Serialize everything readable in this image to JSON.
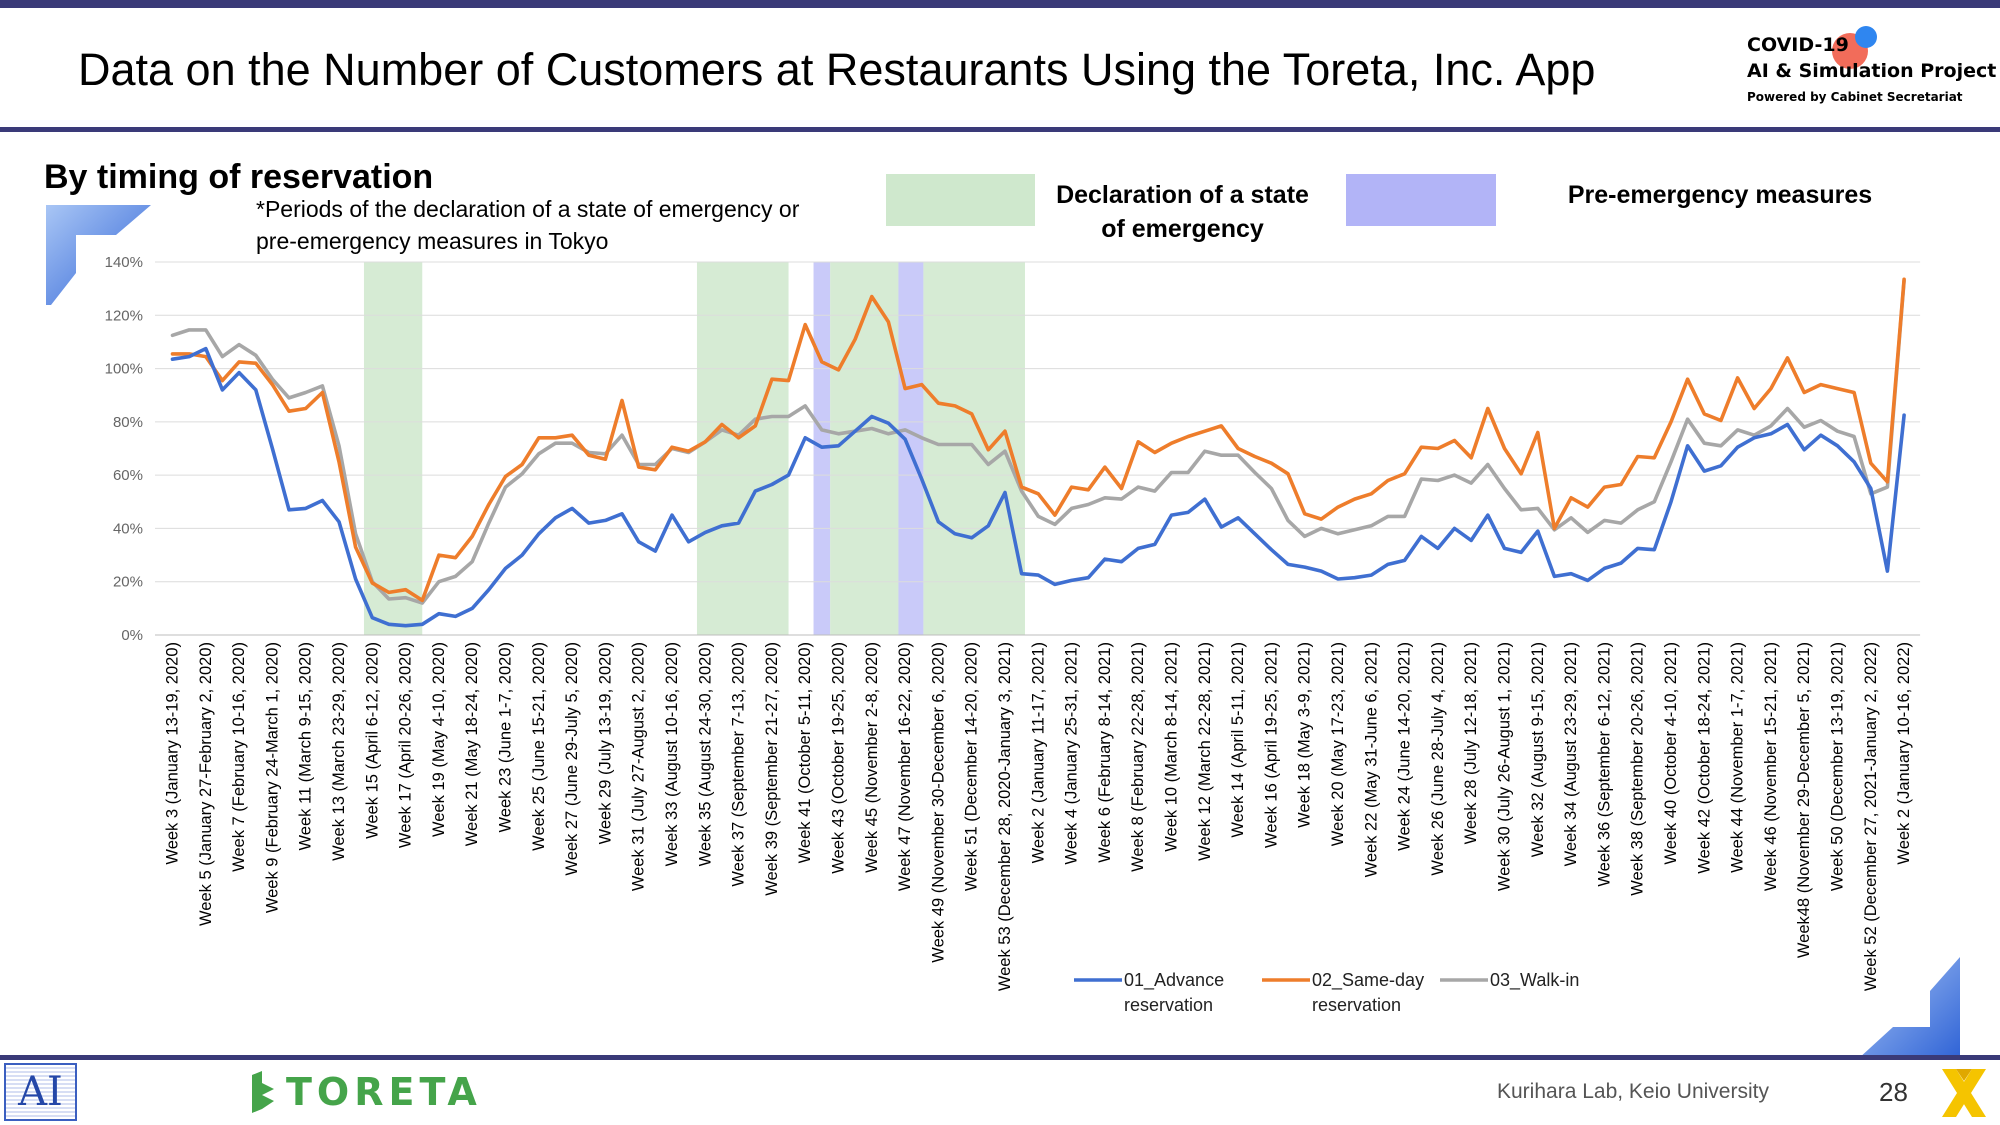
{
  "header": {
    "title": "Data on the Number of Customers at Restaurants Using the Toreta, Inc. App",
    "brand_line1": "COVID-19",
    "brand_line2": "AI & Simulation Project",
    "brand_line3": "Powered by Cabinet Secretariat"
  },
  "section": {
    "subtitle": "By timing of reservation",
    "note_line1": "*Periods of the declaration of a state of emergency or",
    "note_line2": "pre-emergency measures in Tokyo"
  },
  "period_legend": {
    "emergency_line1": "Declaration of a state",
    "emergency_line2": "of emergency",
    "pre_emergency": "Pre-emergency measures",
    "emergency_color": "#cfe8cd",
    "pre_emergency_color": "#b2b4f7"
  },
  "footer": {
    "ai_logo": "AI",
    "company": "TORETA",
    "lab": "Kurihara Lab, Keio University",
    "page": "28"
  },
  "chart_data": {
    "type": "line",
    "ylim": [
      0,
      140
    ],
    "yticks": [
      "0%",
      "20%",
      "40%",
      "60%",
      "80%",
      "100%",
      "120%",
      "140%"
    ],
    "grid": "horizontal",
    "legend_position": "bottom-right",
    "x": [
      "Week 3",
      "Week 4",
      "Week 5",
      "Week 6",
      "Week 7",
      "Week 8",
      "Week 9",
      "Week 10",
      "Week 11",
      "Week 12",
      "Week 13",
      "Week 14",
      "Week 15",
      "Week 16",
      "Week 17",
      "Week 18",
      "Week 19",
      "Week 20",
      "Week 21",
      "Week 22",
      "Week 23",
      "Week 24",
      "Week 25",
      "Week 26",
      "Week 27",
      "Week 28",
      "Week 29",
      "Week 30",
      "Week 31",
      "Week 32",
      "Week 33",
      "Week 34",
      "Week 35",
      "Week 36",
      "Week 37",
      "Week 38",
      "Week 39",
      "Week 40",
      "Week 41",
      "Week 42",
      "Week 43",
      "Week 44",
      "Week 45",
      "Week 46",
      "Week 47",
      "Week 48",
      "Week 49",
      "Week 50",
      "Week 51",
      "Week 52",
      "Week 53",
      "Week 1",
      "Week 2",
      "Week 3",
      "Week 4",
      "Week 5",
      "Week 6",
      "Week 7",
      "Week 8",
      "Week 9",
      "Week 10",
      "Week 11",
      "Week 12",
      "Week 13",
      "Week 14",
      "Week 15",
      "Week 16",
      "Week 17",
      "Week 18",
      "Week 19",
      "Week 20",
      "Week 21",
      "Week 22",
      "Week 23",
      "Week 24",
      "Week 25",
      "Week 26",
      "Week 27",
      "Week 28",
      "Week 29",
      "Week 30",
      "Week 31",
      "Week 32",
      "Week 33",
      "Week 34",
      "Week 35",
      "Week 36",
      "Week 37",
      "Week 38",
      "Week 39",
      "Week 40",
      "Week 41",
      "Week 42",
      "Week 43",
      "Week 44",
      "Week 45",
      "Week 46",
      "Week 47",
      "Week48",
      "Week 49",
      "Week 50",
      "Week 51",
      "Week 52",
      "Week 1",
      "Week 2"
    ],
    "tick_labels": [
      {
        "i": 0,
        "label": "Week 3 (January 13-19, 2020)"
      },
      {
        "i": 2,
        "label": "Week 5 (January 27-February 2, 2020)"
      },
      {
        "i": 4,
        "label": "Week 7 (February 10-16, 2020)"
      },
      {
        "i": 6,
        "label": "Week 9 (February 24-March 1, 2020)"
      },
      {
        "i": 8,
        "label": "Week 11 (March 9-15, 2020)"
      },
      {
        "i": 10,
        "label": "Week 13 (March 23-29, 2020)"
      },
      {
        "i": 12,
        "label": "Week 15 (April 6-12, 2020)"
      },
      {
        "i": 14,
        "label": "Week 17 (April 20-26, 2020)"
      },
      {
        "i": 16,
        "label": "Week 19 (May 4-10, 2020)"
      },
      {
        "i": 18,
        "label": "Week 21 (May 18-24, 2020)"
      },
      {
        "i": 20,
        "label": "Week 23 (June 1-7, 2020)"
      },
      {
        "i": 22,
        "label": "Week 25 (June 15-21, 2020)"
      },
      {
        "i": 24,
        "label": "Week 27 (June 29-July 5, 2020)"
      },
      {
        "i": 26,
        "label": "Week 29 (July 13-19, 2020)"
      },
      {
        "i": 28,
        "label": "Week 31 (July 27-August 2, 2020)"
      },
      {
        "i": 30,
        "label": "Week 33 (August 10-16, 2020)"
      },
      {
        "i": 32,
        "label": "Week 35 (August 24-30, 2020)"
      },
      {
        "i": 34,
        "label": "Week 37 (September 7-13, 2020)"
      },
      {
        "i": 36,
        "label": "Week 39 (September 21-27, 2020)"
      },
      {
        "i": 38,
        "label": "Week 41 (October 5-11, 2020)"
      },
      {
        "i": 40,
        "label": "Week 43 (October 19-25, 2020)"
      },
      {
        "i": 42,
        "label": "Week 45 (November 2-8, 2020)"
      },
      {
        "i": 44,
        "label": "Week 47 (November 16-22, 2020)"
      },
      {
        "i": 46,
        "label": "Week 49 (November 30-December 6, 2020)"
      },
      {
        "i": 48,
        "label": "Week 51 (December 14-20, 2020)"
      },
      {
        "i": 50,
        "label": "Week 53 (December 28, 2020-January 3, 2021)"
      },
      {
        "i": 52,
        "label": "Week 2 (January 11-17, 2021)"
      },
      {
        "i": 54,
        "label": "Week 4 (January 25-31, 2021)"
      },
      {
        "i": 56,
        "label": "Week 6 (February 8-14, 2021)"
      },
      {
        "i": 58,
        "label": "Week 8 (February 22-28, 2021)"
      },
      {
        "i": 60,
        "label": "Week 10 (March 8-14, 2021)"
      },
      {
        "i": 62,
        "label": "Week 12 (March 22-28, 2021)"
      },
      {
        "i": 64,
        "label": "Week 14 (April 5-11, 2021)"
      },
      {
        "i": 66,
        "label": "Week 16 (April 19-25, 2021)"
      },
      {
        "i": 68,
        "label": "Week 18 (May 3-9, 2021)"
      },
      {
        "i": 70,
        "label": "Week 20 (May 17-23, 2021)"
      },
      {
        "i": 72,
        "label": "Week 22 (May 31-June 6, 2021)"
      },
      {
        "i": 74,
        "label": "Week 24 (June 14-20, 2021)"
      },
      {
        "i": 76,
        "label": "Week 26 (June 28-July 4, 2021)"
      },
      {
        "i": 78,
        "label": "Week 28 (July 12-18, 2021)"
      },
      {
        "i": 80,
        "label": "Week 30 (July 26-August 1, 2021)"
      },
      {
        "i": 82,
        "label": "Week 32 (August 9-15, 2021)"
      },
      {
        "i": 84,
        "label": "Week 34 (August 23-29, 2021)"
      },
      {
        "i": 86,
        "label": "Week 36 (September 6-12, 2021)"
      },
      {
        "i": 88,
        "label": "Week 38 (September 20-26, 2021)"
      },
      {
        "i": 90,
        "label": "Week 40 (October 4-10, 2021)"
      },
      {
        "i": 92,
        "label": "Week 42 (October 18-24, 2021)"
      },
      {
        "i": 94,
        "label": "Week 44 (November 1-7, 2021)"
      },
      {
        "i": 96,
        "label": "Week 46 (November 15-21, 2021)"
      },
      {
        "i": 98,
        "label": "Week48 (November 29-December 5, 2021)"
      },
      {
        "i": 100,
        "label": "Week 50 (December 13-19, 2021)"
      },
      {
        "i": 102,
        "label": "Week 52 (December 27, 2021-January 2, 2022)"
      },
      {
        "i": 104,
        "label": "Week 2 (January 10-16, 2022)"
      }
    ],
    "shaded_periods": [
      {
        "kind": "emergency",
        "start": 11.5,
        "end": 15
      },
      {
        "kind": "emergency",
        "start": 31.5,
        "end": 37
      },
      {
        "kind": "pre-emergency",
        "start": 38.5,
        "end": 39.5
      },
      {
        "kind": "emergency",
        "start": 39.5,
        "end": 43.6
      },
      {
        "kind": "pre-emergency",
        "start": 43.6,
        "end": 45.1
      },
      {
        "kind": "emergency",
        "start": 45.1,
        "end": 51.2
      }
    ],
    "series": [
      {
        "name": "01_Advance reservation",
        "color": "#3f6fd1",
        "values": [
          103.5,
          104.5,
          107.5,
          92,
          98.5,
          92,
          70,
          47,
          47.5,
          50.5,
          42.5,
          21,
          6.5,
          4,
          3.5,
          4,
          8,
          7,
          10,
          17,
          25,
          30,
          38,
          44,
          47.5,
          42,
          43,
          45.5,
          35,
          31.5,
          45,
          35,
          38.5,
          41,
          42,
          54,
          56.5,
          60,
          74,
          70.5,
          71,
          76.5,
          82,
          79.5,
          73.5,
          58.5,
          42.5,
          38,
          36.5,
          41,
          53.5,
          23,
          22.5,
          19,
          20.5,
          21.5,
          28.5,
          27.5,
          32.5,
          34,
          45,
          46,
          51,
          40.5,
          44,
          38,
          32,
          26.5,
          25.5,
          24,
          21,
          21.5,
          22.5,
          26.5,
          28,
          37,
          32.5,
          40,
          35.5,
          45,
          32.5,
          31,
          39,
          22,
          23,
          20.5,
          25,
          27,
          32.5,
          32,
          50,
          71,
          61.5,
          63.5,
          70.5,
          74,
          75.5,
          79,
          69.5,
          75,
          71,
          65,
          55,
          24,
          82.5
        ]
      },
      {
        "name": "02_Same-day reservation",
        "color": "#ee7d2b",
        "values": [
          105.5,
          105.5,
          104.5,
          95.5,
          102.5,
          102,
          94,
          84,
          85,
          91,
          65,
          33,
          19.5,
          16,
          17,
          13,
          30,
          29,
          37,
          49,
          59.5,
          64,
          74,
          74,
          75,
          67.5,
          66,
          88,
          63,
          62,
          70.5,
          69,
          72.5,
          79,
          74,
          78.5,
          96,
          95.5,
          116.5,
          102.5,
          99.5,
          111,
          127,
          117.5,
          92.5,
          94,
          87,
          86,
          83,
          69.5,
          76.5,
          55.5,
          53,
          45,
          55.5,
          54.5,
          63,
          55,
          72.5,
          68.5,
          72,
          74.5,
          76.5,
          78.5,
          70,
          67,
          64.5,
          60.5,
          45.5,
          43.5,
          48,
          51,
          53,
          58,
          60.5,
          70.5,
          70,
          73,
          66.5,
          85,
          70,
          60.5,
          76,
          40,
          51.5,
          48,
          55.5,
          56.5,
          67,
          66.5,
          80,
          96,
          83,
          80.5,
          96.5,
          85,
          92.5,
          104,
          91,
          94,
          92.5,
          91,
          64.5,
          57.5,
          133.5
        ]
      },
      {
        "name": "03_Walk-in",
        "color": "#a7a7a7",
        "values": [
          112.5,
          114.5,
          114.5,
          104.5,
          109,
          105,
          96,
          89,
          91,
          93.5,
          71,
          38,
          20,
          13.5,
          14,
          12,
          20,
          22,
          27.5,
          42,
          55.5,
          60.5,
          68,
          72,
          72,
          68.5,
          68,
          75,
          64,
          64,
          70,
          68.5,
          72.5,
          77,
          75,
          81,
          82,
          82,
          86,
          77,
          75.5,
          76.5,
          77.5,
          75.5,
          77,
          74,
          71.5,
          71.5,
          71.5,
          64,
          69,
          54,
          44.5,
          41.5,
          47.5,
          49,
          51.5,
          51,
          55.5,
          54,
          61,
          61,
          69,
          67.5,
          67.5,
          61,
          55,
          43,
          37,
          40,
          38,
          39.5,
          41,
          44.5,
          44.5,
          58.5,
          58,
          60,
          57,
          64,
          55,
          47,
          47.5,
          39.5,
          44,
          38.5,
          43,
          42,
          47,
          50,
          65,
          81,
          72,
          71,
          77,
          75,
          78.5,
          85,
          78,
          80.5,
          76.5,
          74.5,
          53,
          55.5,
          133
        ]
      }
    ]
  }
}
